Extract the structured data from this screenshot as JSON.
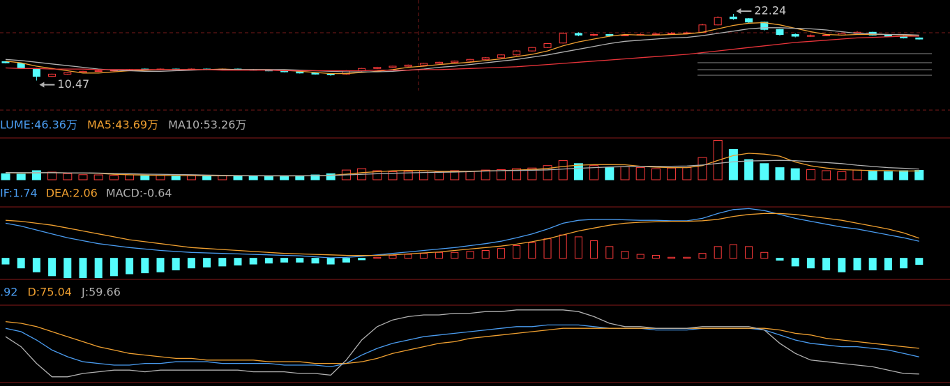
{
  "chart_data": [
    {
      "type": "candlestick",
      "ylim": [
        5,
        24.7
      ],
      "up_color": "#ff3b3b",
      "down_color": "#54fcfc",
      "candles": [
        [
          13.8,
          13.9,
          13.5,
          13.6
        ],
        [
          13.5,
          13.6,
          12.6,
          12.7
        ],
        [
          12.6,
          12.7,
          10.47,
          11.2
        ],
        [
          11.2,
          11.7,
          11.1,
          11.6
        ],
        [
          11.6,
          12.0,
          11.5,
          11.9
        ],
        [
          11.9,
          12.2,
          11.8,
          12.1
        ],
        [
          12.1,
          12.3,
          12.0,
          12.2
        ],
        [
          12.2,
          12.4,
          12.1,
          12.3
        ],
        [
          12.3,
          12.5,
          12.2,
          12.4
        ],
        [
          12.5,
          12.6,
          12.3,
          12.4
        ],
        [
          12.4,
          12.6,
          12.3,
          12.5
        ],
        [
          12.5,
          12.6,
          12.3,
          12.4
        ],
        [
          12.4,
          12.6,
          12.3,
          12.5
        ],
        [
          12.5,
          12.6,
          12.3,
          12.4
        ],
        [
          12.4,
          12.6,
          12.3,
          12.5
        ],
        [
          12.5,
          12.6,
          12.3,
          12.4
        ],
        [
          12.4,
          12.5,
          12.2,
          12.3
        ],
        [
          12.3,
          12.4,
          12.1,
          12.2
        ],
        [
          12.2,
          12.3,
          11.9,
          12.0
        ],
        [
          12.0,
          12.1,
          11.7,
          11.8
        ],
        [
          11.8,
          11.9,
          11.5,
          11.6
        ],
        [
          11.6,
          11.8,
          11.3,
          11.5
        ],
        [
          11.6,
          12.3,
          11.5,
          12.2
        ],
        [
          12.2,
          12.7,
          12.1,
          12.6
        ],
        [
          12.6,
          12.9,
          12.5,
          12.8
        ],
        [
          12.8,
          13.1,
          12.7,
          13.0
        ],
        [
          13.0,
          13.3,
          12.9,
          13.2
        ],
        [
          13.2,
          13.6,
          13.1,
          13.5
        ],
        [
          13.5,
          13.8,
          13.4,
          13.7
        ],
        [
          13.7,
          14.0,
          13.6,
          13.9
        ],
        [
          13.9,
          14.3,
          13.8,
          14.2
        ],
        [
          14.2,
          14.6,
          14.1,
          14.5
        ],
        [
          14.5,
          15.1,
          14.4,
          15.0
        ],
        [
          15.0,
          15.8,
          14.9,
          15.7
        ],
        [
          15.7,
          16.4,
          15.6,
          16.3
        ],
        [
          16.3,
          17.1,
          16.2,
          17.0
        ],
        [
          17.1,
          19.0,
          17.0,
          18.8
        ],
        [
          18.8,
          19.0,
          18.3,
          18.5
        ],
        [
          18.5,
          18.8,
          18.3,
          18.6
        ],
        [
          18.6,
          18.7,
          18.2,
          18.4
        ],
        [
          18.4,
          18.7,
          18.3,
          18.5
        ],
        [
          18.5,
          18.8,
          18.4,
          18.6
        ],
        [
          18.6,
          18.9,
          18.5,
          18.7
        ],
        [
          18.7,
          19.0,
          18.6,
          18.8
        ],
        [
          18.8,
          19.1,
          18.7,
          18.9
        ],
        [
          19.0,
          20.5,
          18.9,
          20.3
        ],
        [
          20.3,
          21.8,
          20.2,
          21.6
        ],
        [
          21.7,
          22.24,
          21.2,
          21.4
        ],
        [
          21.4,
          21.5,
          20.6,
          20.8
        ],
        [
          20.8,
          20.9,
          19.3,
          19.5
        ],
        [
          19.5,
          19.6,
          18.4,
          18.6
        ],
        [
          18.6,
          18.8,
          18.1,
          18.3
        ],
        [
          18.3,
          18.6,
          18.2,
          18.4
        ],
        [
          18.4,
          18.7,
          18.3,
          18.5
        ],
        [
          18.5,
          18.9,
          18.4,
          18.8
        ],
        [
          18.8,
          19.2,
          18.7,
          19.0
        ],
        [
          19.0,
          19.1,
          18.4,
          18.5
        ],
        [
          18.5,
          18.6,
          18.2,
          18.3
        ],
        [
          18.3,
          18.4,
          17.9,
          18.0
        ],
        [
          18.0,
          18.1,
          17.7,
          17.8
        ]
      ],
      "series": [
        {
          "color": "#f0a030",
          "values": [
            13.9,
            13.6,
            13.0,
            12.6,
            12.2,
            11.8,
            11.8,
            12.0,
            12.2,
            12.3,
            12.4,
            12.4,
            12.4,
            12.4,
            12.5,
            12.4,
            12.4,
            12.4,
            12.3,
            12.1,
            11.9,
            11.7,
            11.7,
            11.9,
            12.1,
            12.4,
            12.8,
            13.0,
            13.3,
            13.5,
            13.7,
            14.0,
            14.3,
            14.7,
            15.1,
            15.7,
            16.6,
            17.3,
            17.8,
            18.3,
            18.6,
            18.5,
            18.5,
            18.6,
            18.7,
            19.0,
            19.6,
            20.2,
            20.6,
            20.7,
            20.3,
            19.7,
            19.1,
            18.6,
            18.5,
            18.6,
            18.6,
            18.6,
            18.5,
            18.3
          ]
        },
        {
          "color": "#b0b0b0",
          "values": [
            14.2,
            14.0,
            13.7,
            13.4,
            13.1,
            12.8,
            12.5,
            12.3,
            12.2,
            12.1,
            12.1,
            12.2,
            12.3,
            12.4,
            12.4,
            12.4,
            12.4,
            12.4,
            12.4,
            12.3,
            12.2,
            12.1,
            12.0,
            12.0,
            12.0,
            12.1,
            12.3,
            12.5,
            12.8,
            13.0,
            13.3,
            13.6,
            13.9,
            14.2,
            14.6,
            15.0,
            15.5,
            16.0,
            16.5,
            17.0,
            17.4,
            17.6,
            17.8,
            18.0,
            18.1,
            18.4,
            18.8,
            19.2,
            19.6,
            19.8,
            19.8,
            19.7,
            19.6,
            19.4,
            19.1,
            18.8,
            18.7,
            18.6,
            18.6,
            18.5
          ]
        },
        {
          "color": "#e8343a",
          "values": [
            12.7,
            12.6,
            12.6,
            12.5,
            12.5,
            12.5,
            12.4,
            12.4,
            12.4,
            12.4,
            12.4,
            12.4,
            12.4,
            12.4,
            12.3,
            12.3,
            12.3,
            12.3,
            12.2,
            12.2,
            12.2,
            12.2,
            12.2,
            12.2,
            12.3,
            12.3,
            12.3,
            12.4,
            12.4,
            12.5,
            12.6,
            12.7,
            12.8,
            12.9,
            13.1,
            13.3,
            13.5,
            13.7,
            13.9,
            14.1,
            14.3,
            14.5,
            14.7,
            14.9,
            15.1,
            15.4,
            15.7,
            16.0,
            16.3,
            16.6,
            16.9,
            17.2,
            17.4,
            17.6,
            17.8,
            18.0,
            18.1,
            18.2,
            18.3,
            18.3
          ]
        }
      ]
    },
    {
      "type": "bar",
      "ylim": [
        0,
        200
      ],
      "label": "LUME:46.36万",
      "label_color": "#4a9cf0",
      "values": [
        30,
        28,
        45,
        38,
        30,
        25,
        24,
        22,
        24,
        20,
        22,
        18,
        20,
        18,
        22,
        20,
        18,
        16,
        18,
        20,
        24,
        30,
        48,
        55,
        45,
        40,
        42,
        44,
        40,
        45,
        42,
        48,
        50,
        55,
        58,
        70,
        95,
        80,
        70,
        60,
        65,
        60,
        55,
        58,
        60,
        110,
        195,
        150,
        100,
        80,
        60,
        55,
        50,
        45,
        40,
        48,
        42,
        40,
        45,
        46.36
      ],
      "series": [
        {
          "name": "MA5:43.69万",
          "color": "#f0a030",
          "values": [
            35,
            33,
            34,
            35,
            34,
            33,
            32,
            27,
            25,
            23,
            22,
            21,
            21,
            20,
            20,
            20,
            20,
            19,
            19,
            19,
            20,
            22,
            28,
            35,
            40,
            44,
            46,
            45,
            42,
            42,
            42,
            44,
            45,
            48,
            51,
            56,
            66,
            72,
            75,
            75,
            74,
            67,
            62,
            60,
            60,
            70,
            96,
            120,
            131,
            127,
            117,
            88,
            69,
            58,
            50,
            48,
            45,
            45,
            43,
            43.69
          ]
        },
        {
          "name": "MA10:53.26万",
          "color": "#b0b0b0",
          "values": [
            36,
            35,
            35,
            35,
            34,
            34,
            33,
            31,
            30,
            28,
            27,
            26,
            25,
            23,
            22,
            21,
            20,
            20,
            20,
            20,
            20,
            21,
            24,
            27,
            30,
            32,
            34,
            36,
            37,
            38,
            40,
            43,
            45,
            46,
            47,
            49,
            53,
            57,
            60,
            63,
            65,
            67,
            67,
            67,
            68,
            73,
            81,
            89,
            93,
            94,
            96,
            94,
            90,
            85,
            80,
            72,
            66,
            60,
            57,
            53.26
          ]
        }
      ]
    },
    {
      "type": "macd",
      "ylim": [
        -2.1,
        5.2
      ],
      "label": "MACD:-0.64",
      "label_color": "#b0b0b0",
      "values": [
        -0.6,
        -1.0,
        -1.4,
        -1.8,
        -2.0,
        -2.0,
        -2.0,
        -1.8,
        -1.6,
        -1.5,
        -1.4,
        -1.2,
        -1.0,
        -0.9,
        -0.8,
        -0.7,
        -0.6,
        -0.5,
        -0.4,
        -0.4,
        -0.5,
        -0.6,
        -0.4,
        -0.16,
        0.1,
        0.3,
        0.4,
        0.5,
        0.6,
        0.6,
        0.7,
        0.8,
        1.0,
        1.3,
        1.6,
        2.0,
        2.4,
        2.2,
        1.8,
        1.2,
        0.7,
        0.4,
        0.3,
        0.1,
        0.1,
        0.5,
        1.2,
        1.4,
        1.2,
        0.6,
        -0.2,
        -0.8,
        -1.0,
        -1.2,
        -1.4,
        -1.2,
        -1.2,
        -1.2,
        -1.0,
        -0.64
      ],
      "series": [
        {
          "name": "IF:1.74",
          "color": "#4a9cf0",
          "values": [
            3.6,
            3.3,
            2.9,
            2.5,
            2.1,
            1.8,
            1.5,
            1.3,
            1.1,
            0.95,
            0.8,
            0.7,
            0.6,
            0.55,
            0.5,
            0.45,
            0.4,
            0.35,
            0.3,
            0.25,
            0.15,
            0.05,
            0.1,
            0.2,
            0.35,
            0.5,
            0.65,
            0.8,
            0.95,
            1.1,
            1.3,
            1.5,
            1.75,
            2.1,
            2.5,
            3.0,
            3.6,
            3.9,
            4.0,
            4.0,
            3.95,
            3.9,
            3.9,
            3.85,
            3.85,
            4.1,
            4.6,
            5.0,
            5.1,
            4.9,
            4.5,
            4.1,
            3.8,
            3.5,
            3.2,
            3.0,
            2.7,
            2.4,
            2.1,
            1.74
          ]
        },
        {
          "name": "DEA:2.06",
          "color": "#f0a030",
          "values": [
            3.9,
            3.8,
            3.6,
            3.4,
            3.1,
            2.8,
            2.5,
            2.2,
            1.9,
            1.7,
            1.5,
            1.3,
            1.1,
            1.0,
            0.9,
            0.8,
            0.7,
            0.6,
            0.5,
            0.45,
            0.4,
            0.35,
            0.3,
            0.28,
            0.3,
            0.35,
            0.45,
            0.55,
            0.65,
            0.8,
            0.95,
            1.1,
            1.25,
            1.45,
            1.7,
            2.0,
            2.4,
            2.8,
            3.1,
            3.4,
            3.6,
            3.7,
            3.75,
            3.8,
            3.8,
            3.85,
            4.0,
            4.3,
            4.5,
            4.6,
            4.6,
            4.5,
            4.3,
            4.1,
            3.9,
            3.6,
            3.3,
            3.0,
            2.6,
            2.06
          ]
        }
      ]
    },
    {
      "type": "line",
      "ylim": [
        55,
        100
      ],
      "series": [
        {
          "name": ".92",
          "color": "#4a9cf0",
          "values": [
            87,
            85,
            80,
            74,
            70,
            67,
            66,
            65,
            65,
            66,
            66,
            67,
            67,
            67,
            66,
            66,
            66,
            66,
            65,
            65,
            65,
            64,
            66,
            71,
            75,
            78,
            80,
            82,
            83,
            84,
            85,
            86,
            87,
            88,
            88,
            89,
            89,
            89,
            88,
            87,
            87,
            87,
            86,
            86,
            86,
            87,
            87,
            87,
            87,
            86,
            83,
            80,
            78,
            77,
            76,
            76,
            75,
            74,
            72,
            69.92
          ]
        },
        {
          "name": "D:75.04",
          "color": "#f0a030",
          "values": [
            91,
            90,
            88,
            85,
            82,
            79,
            76,
            74,
            72,
            71,
            70,
            69,
            69,
            68,
            68,
            68,
            68,
            67,
            67,
            67,
            66,
            66,
            66,
            67,
            69,
            72,
            74,
            76,
            78,
            79,
            81,
            82,
            83,
            84,
            85,
            86,
            87,
            87,
            87,
            87,
            87,
            87,
            87,
            87,
            87,
            87,
            87,
            87,
            87,
            87,
            86,
            84,
            83,
            81,
            80,
            79,
            78,
            77,
            76,
            75.04
          ]
        },
        {
          "name": "J:59.66",
          "color": "#b0b0b0",
          "values": [
            82,
            76,
            66,
            58,
            58,
            60,
            61,
            62,
            62,
            61,
            62,
            62,
            62,
            62,
            62,
            62,
            61,
            61,
            61,
            60,
            60,
            59,
            68,
            80,
            88,
            92,
            94,
            95,
            95,
            96,
            96,
            97,
            97,
            98,
            98,
            98,
            98,
            97,
            94,
            90,
            88,
            88,
            87,
            87,
            87,
            88,
            88,
            88,
            88,
            86,
            78,
            72,
            68,
            67,
            66,
            65,
            64,
            62,
            60,
            59.66
          ]
        }
      ]
    }
  ]
}
